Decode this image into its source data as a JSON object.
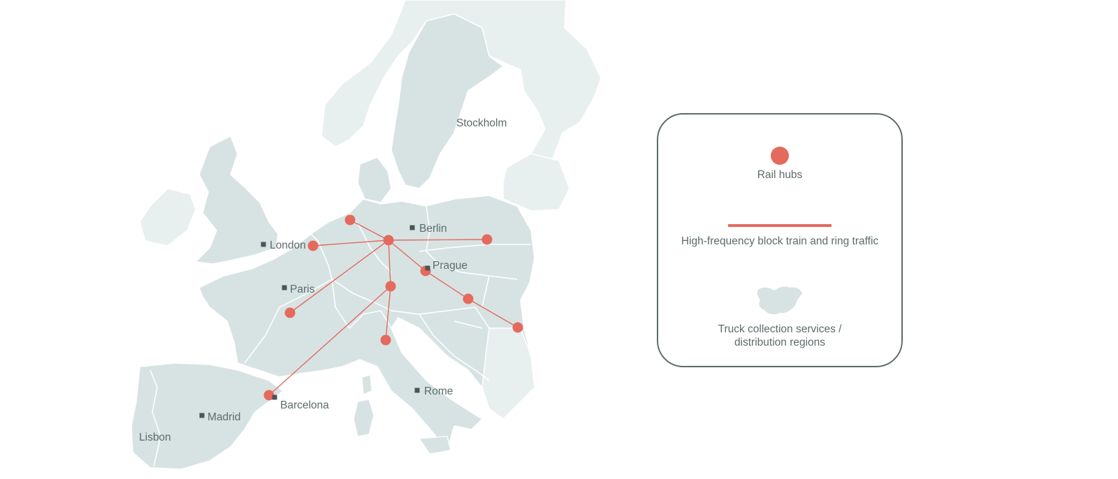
{
  "colors": {
    "hub": "#e46a5e",
    "route": "#e46a5e",
    "land": "#d7e3e3",
    "land_light": "#e8efef",
    "border": "#ffffff",
    "city_marker": "#4c5555",
    "text": "#5d6b6b",
    "legend_border": "#5f6a6a"
  },
  "cities": [
    {
      "id": "stockholm",
      "label": "Stockholm",
      "marker": false
    },
    {
      "id": "london",
      "label": "London",
      "marker": true
    },
    {
      "id": "berlin",
      "label": "Berlin",
      "marker": true
    },
    {
      "id": "prague",
      "label": "Prague",
      "marker": true
    },
    {
      "id": "paris",
      "label": "Paris",
      "marker": true
    },
    {
      "id": "barcelona",
      "label": "Barcelona",
      "marker": true
    },
    {
      "id": "madrid",
      "label": "Madrid",
      "marker": true
    },
    {
      "id": "rome",
      "label": "Rome",
      "marker": true
    },
    {
      "id": "lisbon",
      "label": "Lisbon",
      "marker": false
    }
  ],
  "hubs": [
    "rotterdam",
    "cologne",
    "hamburg",
    "warsaw",
    "prague",
    "basel",
    "vienna",
    "bucharest",
    "lyon",
    "milan",
    "barcelona"
  ],
  "routes": [
    [
      "cologne",
      "hamburg"
    ],
    [
      "cologne",
      "rotterdam"
    ],
    [
      "cologne",
      "warsaw"
    ],
    [
      "cologne",
      "prague"
    ],
    [
      "prague",
      "vienna"
    ],
    [
      "vienna",
      "bucharest"
    ],
    [
      "cologne",
      "basel"
    ],
    [
      "cologne",
      "lyon"
    ],
    [
      "basel",
      "milan"
    ],
    [
      "basel",
      "barcelona"
    ]
  ],
  "legend": {
    "hubs_label": "Rail hubs",
    "routes_label": "High-frequency block train and ring traffic",
    "truck_label": "Truck collection services / distribution regions",
    "truck_icon": "region-shape-icon"
  }
}
